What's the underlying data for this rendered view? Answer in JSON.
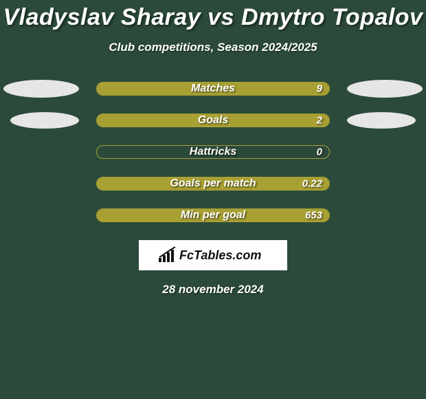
{
  "title": "Vladyslav Sharay vs Dmytro Topalov",
  "subtitle": "Club competitions, Season 2024/2025",
  "date": "28 november 2024",
  "footer_brand": "FcTables.com",
  "colors": {
    "background": "#2b4a3a",
    "bar_fill": "#a8a033",
    "bar_border": "#a8a033",
    "ellipse": "#e6e6e6",
    "text": "#ffffff"
  },
  "stats": [
    {
      "label": "Matches",
      "value_right": "9",
      "fill_left_pct": 0,
      "fill_right_pct": 100,
      "show_left_ellipse": true,
      "show_right_ellipse": true,
      "ellipse_small": false
    },
    {
      "label": "Goals",
      "value_right": "2",
      "fill_left_pct": 0,
      "fill_right_pct": 100,
      "show_left_ellipse": true,
      "show_right_ellipse": true,
      "ellipse_small": true
    },
    {
      "label": "Hattricks",
      "value_right": "0",
      "fill_left_pct": 0,
      "fill_right_pct": 0,
      "show_left_ellipse": false,
      "show_right_ellipse": false,
      "ellipse_small": false
    },
    {
      "label": "Goals per match",
      "value_right": "0.22",
      "fill_left_pct": 0,
      "fill_right_pct": 100,
      "show_left_ellipse": false,
      "show_right_ellipse": false,
      "ellipse_small": false
    },
    {
      "label": "Min per goal",
      "value_right": "653",
      "fill_left_pct": 0,
      "fill_right_pct": 100,
      "show_left_ellipse": false,
      "show_right_ellipse": false,
      "ellipse_small": false
    }
  ]
}
